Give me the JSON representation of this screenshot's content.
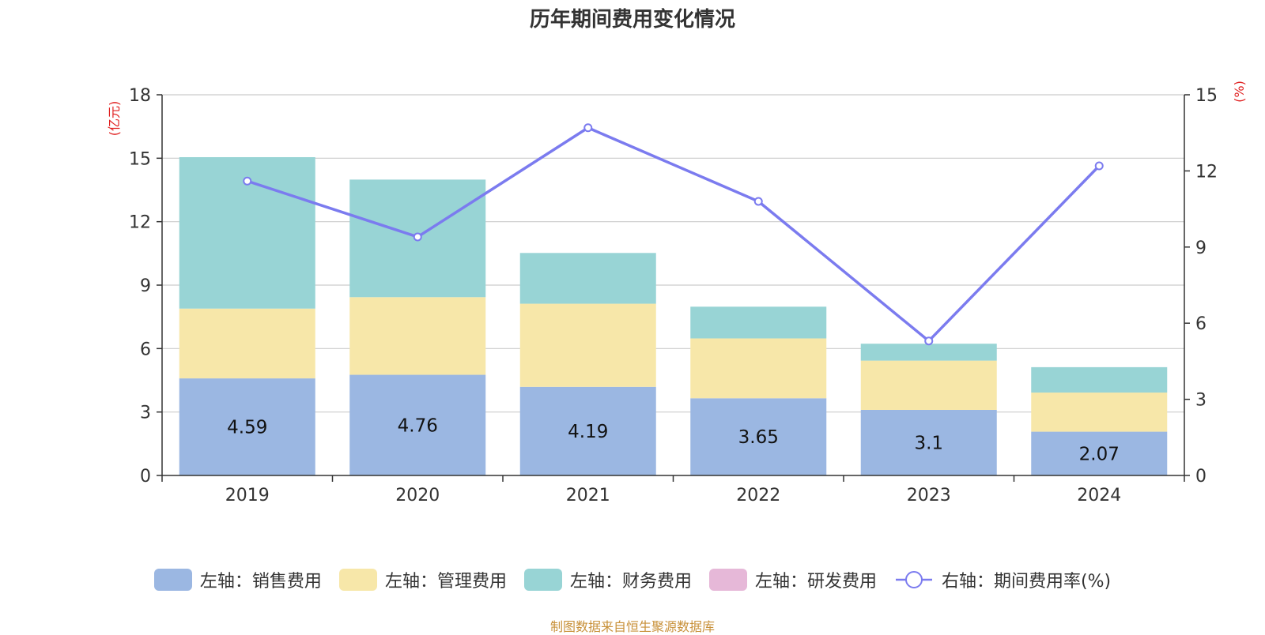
{
  "chart_data": {
    "type": "bar",
    "title": "历年期间费用变化情况",
    "categories": [
      "2019",
      "2020",
      "2021",
      "2022",
      "2023",
      "2024"
    ],
    "y_left": {
      "unit_label": "(亿元)",
      "ticks": [
        "0",
        "3",
        "6",
        "9",
        "12",
        "15",
        "18"
      ],
      "range": [
        0,
        18
      ]
    },
    "y_right": {
      "unit_label": "(%)",
      "ticks": [
        "0",
        "3",
        "6",
        "9",
        "12",
        "15"
      ],
      "range": [
        0,
        15
      ]
    },
    "stack_series": [
      {
        "name": "左轴：销售费用",
        "color": "#9bb7e2",
        "values": [
          4.59,
          4.76,
          4.19,
          3.65,
          3.1,
          2.07
        ],
        "labels": [
          "4.59",
          "4.76",
          "4.19",
          "3.65",
          "3.1",
          "2.07"
        ]
      },
      {
        "name": "左轴：管理费用",
        "color": "#f7e7a9",
        "values": [
          3.3,
          3.67,
          3.93,
          2.83,
          2.33,
          1.85
        ]
      },
      {
        "name": "左轴：财务费用",
        "color": "#98d4d5",
        "values": [
          7.16,
          5.56,
          2.4,
          1.5,
          0.8,
          1.2
        ]
      },
      {
        "name": "左轴：研发费用",
        "color": "#e6b8d8",
        "values": [
          0,
          0,
          0,
          0,
          0,
          0
        ]
      }
    ],
    "line_series": {
      "name": "右轴：期间费用率(%)",
      "color": "#7b7bef",
      "values": [
        11.6,
        9.4,
        13.7,
        10.8,
        5.3,
        12.2
      ]
    },
    "grid": true,
    "legend_position": "bottom",
    "source_note": "制图数据来自恒生聚源数据库"
  }
}
